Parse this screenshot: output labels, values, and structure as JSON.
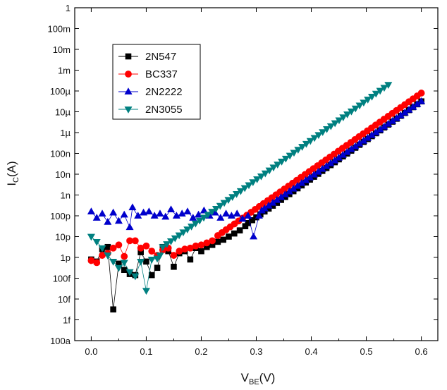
{
  "chart_data": {
    "type": "scatter",
    "title": "",
    "xlabel": {
      "main": "V",
      "sub": "BE",
      "unit": "(V)"
    },
    "ylabel": {
      "main": "I",
      "sub": "C",
      "unit": "(A)"
    },
    "y_scale": "log",
    "xlim": [
      -0.03,
      0.63
    ],
    "ylim_exp": [
      -16,
      0
    ],
    "x_ticks": [
      {
        "value": 0.0,
        "label": "0.0"
      },
      {
        "value": 0.1,
        "label": "0.1"
      },
      {
        "value": 0.2,
        "label": "0.2"
      },
      {
        "value": 0.3,
        "label": "0.3"
      },
      {
        "value": 0.4,
        "label": "0.4"
      },
      {
        "value": 0.5,
        "label": "0.5"
      },
      {
        "value": 0.6,
        "label": "0.6"
      }
    ],
    "y_ticks": [
      {
        "exp": 0,
        "label": "1"
      },
      {
        "exp": -1,
        "label": "100m"
      },
      {
        "exp": -2,
        "label": "10m"
      },
      {
        "exp": -3,
        "label": "1m"
      },
      {
        "exp": -4,
        "label": "100µ"
      },
      {
        "exp": -5,
        "label": "10µ"
      },
      {
        "exp": -6,
        "label": "1µ"
      },
      {
        "exp": -7,
        "label": "100n"
      },
      {
        "exp": -8,
        "label": "10n"
      },
      {
        "exp": -9,
        "label": "1n"
      },
      {
        "exp": -10,
        "label": "100p"
      },
      {
        "exp": -11,
        "label": "10p"
      },
      {
        "exp": -12,
        "label": "1p"
      },
      {
        "exp": -13,
        "label": "100f"
      },
      {
        "exp": -14,
        "label": "10f"
      },
      {
        "exp": -15,
        "label": "1f"
      },
      {
        "exp": -16,
        "label": "100a"
      }
    ],
    "legend_position": "top-left",
    "series": [
      {
        "name": "2N547",
        "marker": "square",
        "color": "#000000",
        "low_region": [
          [
            0.0,
            -12.1
          ],
          [
            0.01,
            -12.2
          ],
          [
            0.02,
            -11.6
          ],
          [
            0.03,
            -11.5
          ],
          [
            0.04,
            -14.5
          ],
          [
            0.05,
            -12.3
          ],
          [
            0.06,
            -12.6
          ],
          [
            0.07,
            -12.8
          ],
          [
            0.08,
            -12.85
          ],
          [
            0.09,
            -11.75
          ],
          [
            0.1,
            -12.2
          ],
          [
            0.11,
            -12.85
          ],
          [
            0.12,
            -12.5
          ],
          [
            0.13,
            -11.5
          ],
          [
            0.14,
            -11.7
          ],
          [
            0.15,
            -12.45
          ],
          [
            0.16,
            -11.8
          ],
          [
            0.17,
            -11.7
          ],
          [
            0.18,
            -12.1
          ],
          [
            0.19,
            -11.55
          ],
          [
            0.2,
            -11.7
          ],
          [
            0.21,
            -11.5
          ],
          [
            0.22,
            -11.4
          ],
          [
            0.23,
            -11.25
          ],
          [
            0.24,
            -11.15
          ],
          [
            0.25,
            -11.0
          ],
          [
            0.26,
            -10.85
          ],
          [
            0.27,
            -10.7
          ],
          [
            0.28,
            -10.5
          ]
        ],
        "ramp": {
          "x_start": 0.285,
          "x_end": 0.6,
          "step": 0.0075,
          "y_start": -10.35,
          "y_end": -4.5
        }
      },
      {
        "name": "BC337",
        "marker": "circle",
        "color": "#ff0000",
        "low_region": [
          [
            0.0,
            -12.15
          ],
          [
            0.01,
            -12.25
          ],
          [
            0.02,
            -11.9
          ],
          [
            0.03,
            -11.8
          ],
          [
            0.04,
            -11.55
          ],
          [
            0.05,
            -11.4
          ],
          [
            0.06,
            -11.95
          ],
          [
            0.07,
            -11.2
          ],
          [
            0.08,
            -11.2
          ],
          [
            0.09,
            -11.55
          ],
          [
            0.1,
            -11.45
          ],
          [
            0.11,
            -11.7
          ],
          [
            0.12,
            -11.9
          ],
          [
            0.13,
            -11.65
          ],
          [
            0.14,
            -11.55
          ],
          [
            0.15,
            -11.9
          ],
          [
            0.16,
            -11.7
          ],
          [
            0.17,
            -11.6
          ],
          [
            0.18,
            -11.55
          ],
          [
            0.19,
            -11.45
          ],
          [
            0.2,
            -11.4
          ],
          [
            0.21,
            -11.3
          ],
          [
            0.22,
            -11.2
          ]
        ],
        "ramp": {
          "x_start": 0.23,
          "x_end": 0.6,
          "step": 0.0075,
          "y_start": -10.95,
          "y_end": -4.1
        }
      },
      {
        "name": "2N2222",
        "marker": "triangle-up",
        "color": "#0000cc",
        "low_region": [
          [
            0.0,
            -9.8
          ],
          [
            0.01,
            -10.1
          ],
          [
            0.02,
            -9.9
          ],
          [
            0.03,
            -10.3
          ],
          [
            0.04,
            -9.85
          ],
          [
            0.05,
            -10.25
          ],
          [
            0.06,
            -9.95
          ],
          [
            0.07,
            -10.55
          ],
          [
            0.075,
            -9.6
          ],
          [
            0.085,
            -10.0
          ],
          [
            0.095,
            -9.85
          ],
          [
            0.105,
            -9.8
          ],
          [
            0.115,
            -10.0
          ],
          [
            0.125,
            -9.9
          ],
          [
            0.135,
            -10.05
          ],
          [
            0.145,
            -9.7
          ],
          [
            0.155,
            -10.0
          ],
          [
            0.165,
            -9.9
          ],
          [
            0.175,
            -9.8
          ],
          [
            0.185,
            -10.1
          ],
          [
            0.195,
            -9.95
          ],
          [
            0.205,
            -9.75
          ],
          [
            0.215,
            -10.0
          ],
          [
            0.225,
            -9.85
          ],
          [
            0.235,
            -10.1
          ],
          [
            0.245,
            -9.9
          ],
          [
            0.255,
            -10.0
          ],
          [
            0.265,
            -9.9
          ],
          [
            0.275,
            -10.15
          ],
          [
            0.285,
            -10.0
          ],
          [
            0.295,
            -11.0
          ],
          [
            0.305,
            -10.0
          ],
          [
            0.31,
            -9.75
          ]
        ],
        "ramp": {
          "x_start": 0.315,
          "x_end": 0.6,
          "step": 0.0075,
          "y_start": -9.65,
          "y_end": -4.5
        }
      },
      {
        "name": "2N3055",
        "marker": "triangle-down",
        "color": "#008080",
        "low_region": [
          [
            0.0,
            -11.0
          ],
          [
            0.01,
            -11.25
          ],
          [
            0.02,
            -11.55
          ],
          [
            0.03,
            -11.9
          ],
          [
            0.04,
            -12.2
          ],
          [
            0.05,
            -12.5
          ],
          [
            0.06,
            -12.25
          ],
          [
            0.07,
            -12.7
          ],
          [
            0.08,
            -12.9
          ],
          [
            0.09,
            -12.2
          ],
          [
            0.1,
            -13.6
          ],
          [
            0.11,
            -12.1
          ],
          [
            0.12,
            -12.05
          ],
          [
            0.125,
            -11.9
          ]
        ],
        "ramp": {
          "x_start": 0.13,
          "x_end": 0.54,
          "step": 0.0075,
          "y_start": -11.5,
          "y_end": -3.7
        }
      }
    ]
  }
}
